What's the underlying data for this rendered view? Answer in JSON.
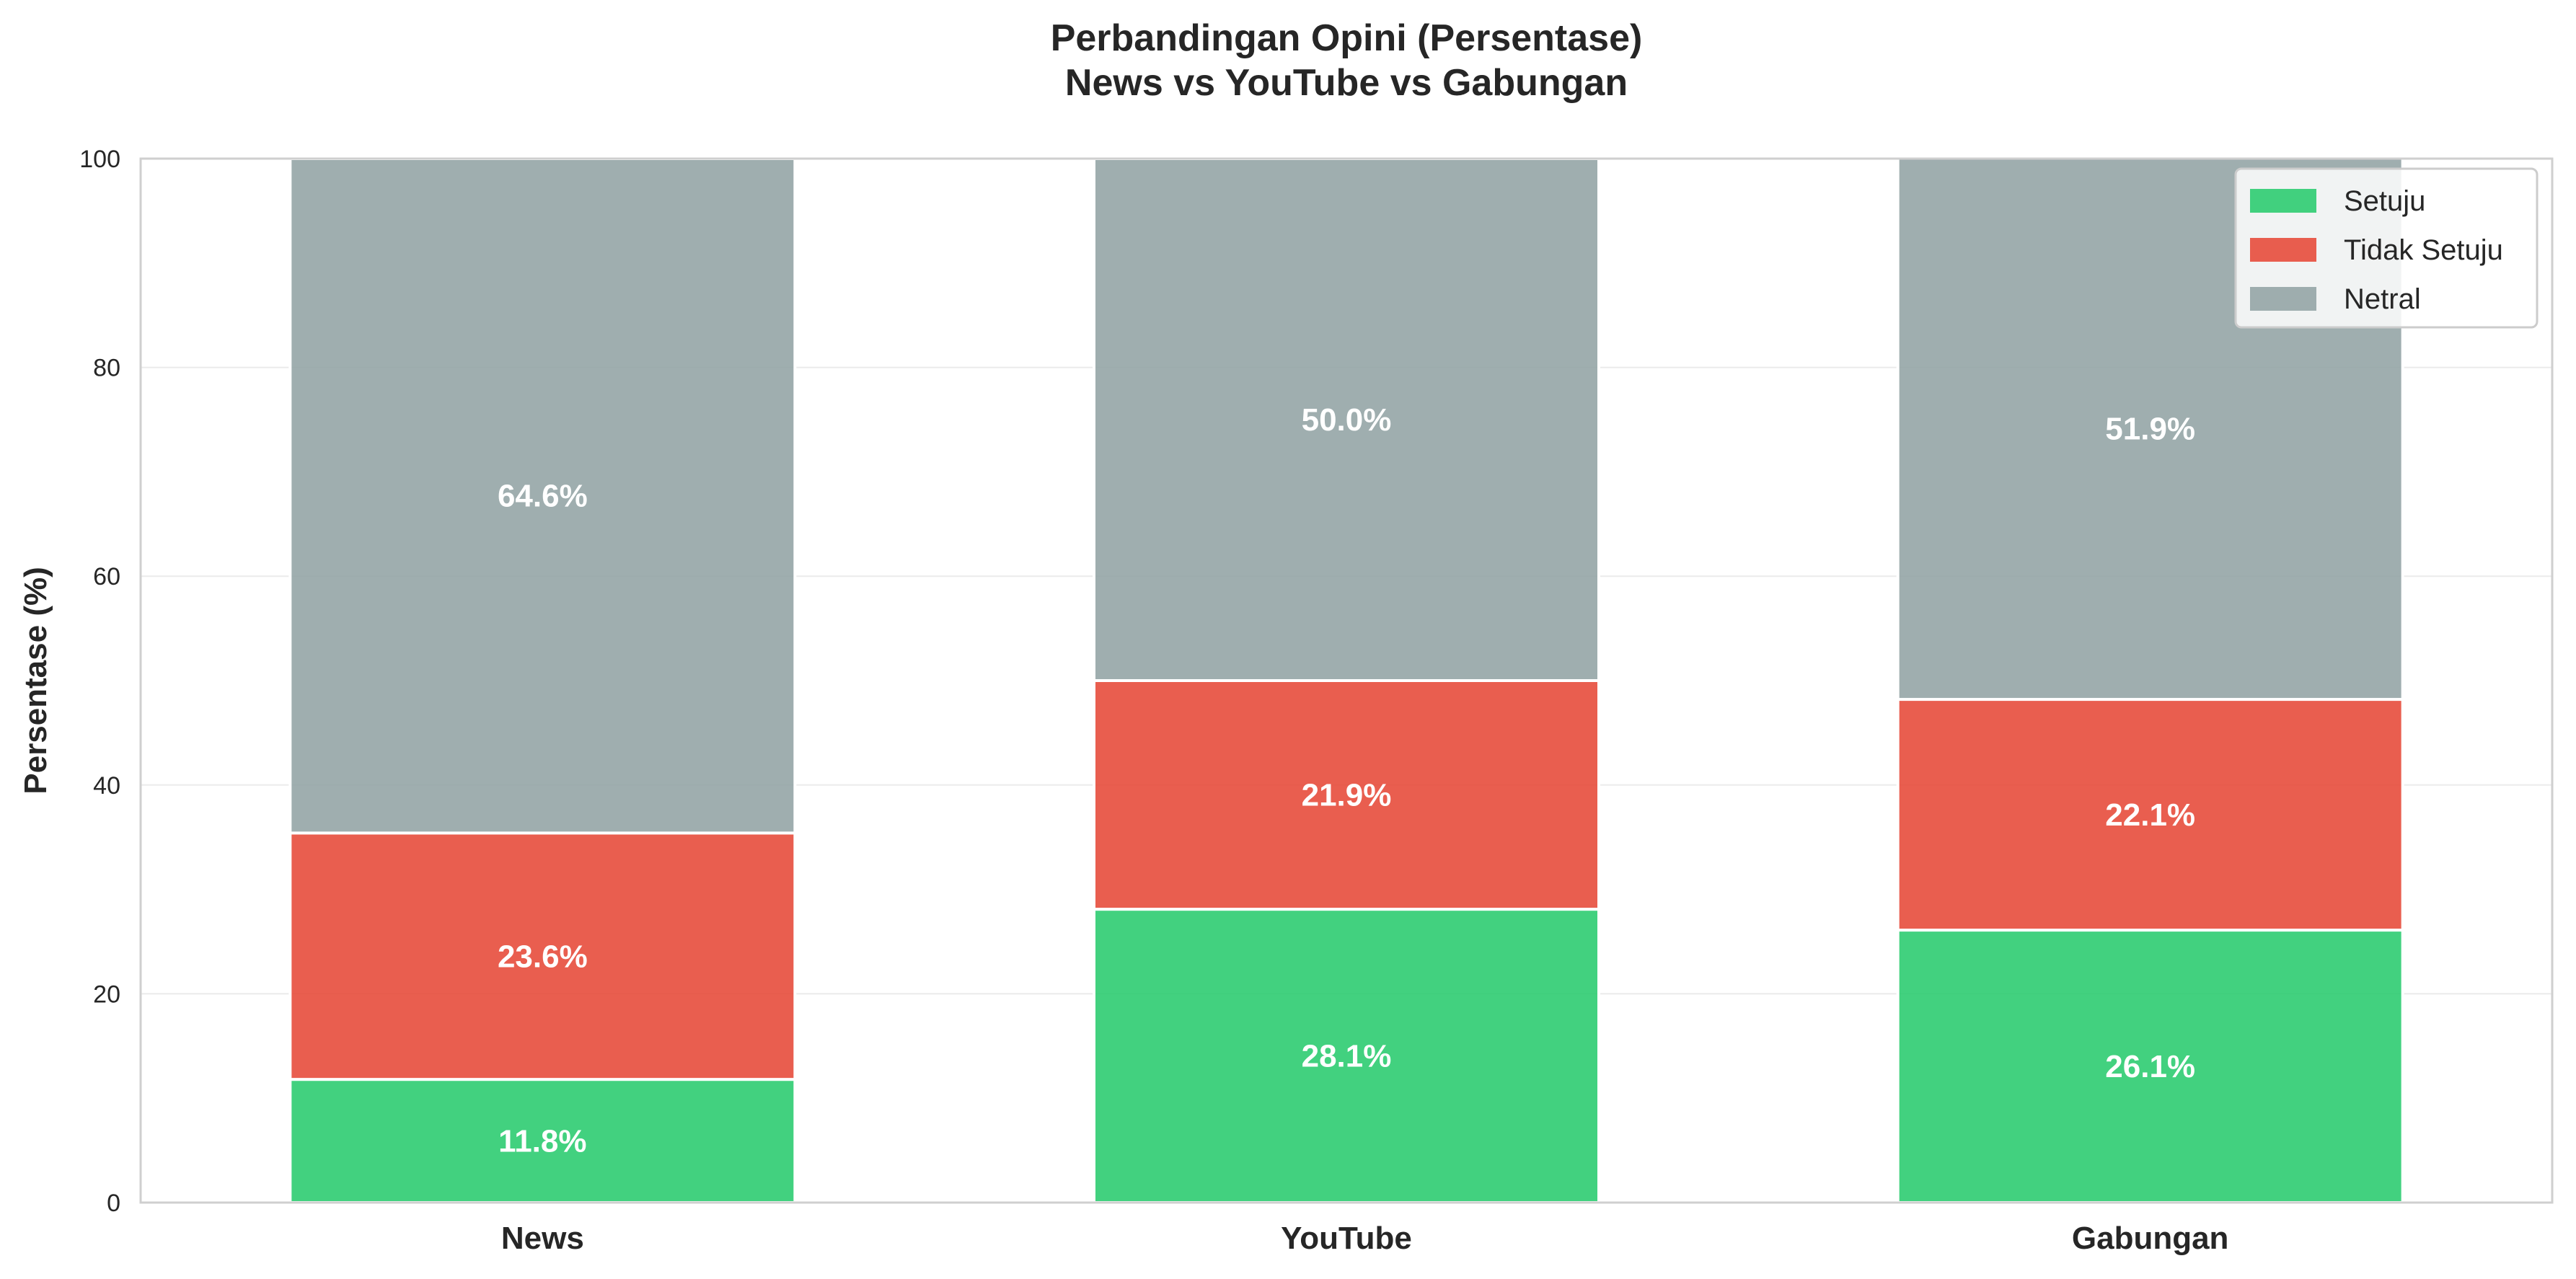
{
  "chart_data": {
    "type": "bar",
    "stacked": true,
    "title": [
      "Perbandingan Opini (Persentase)",
      "News vs YouTube vs Gabungan"
    ],
    "xlabel": "",
    "ylabel": "Persentase (%)",
    "ylim": [
      0,
      100
    ],
    "yticks": [
      "0",
      "20",
      "40",
      "60",
      "80",
      "100"
    ],
    "grid": true,
    "legend_position": "top-right",
    "categories": [
      "News",
      "YouTube",
      "Gabungan"
    ],
    "series": [
      {
        "name": "Setuju",
        "color": "#2ecc71",
        "values": [
          11.8,
          28.1,
          26.1
        ],
        "labels": [
          "11.8%",
          "28.1%",
          "26.1%"
        ]
      },
      {
        "name": "Tidak Setuju",
        "color": "#e74c3c",
        "values": [
          23.6,
          21.9,
          22.1
        ],
        "labels": [
          "23.6%",
          "21.9%",
          "22.1%"
        ]
      },
      {
        "name": "Netral",
        "color": "#95a5a6",
        "values": [
          64.6,
          50.0,
          51.9
        ],
        "labels": [
          "64.6%",
          "50.0%",
          "51.9%"
        ]
      }
    ]
  }
}
